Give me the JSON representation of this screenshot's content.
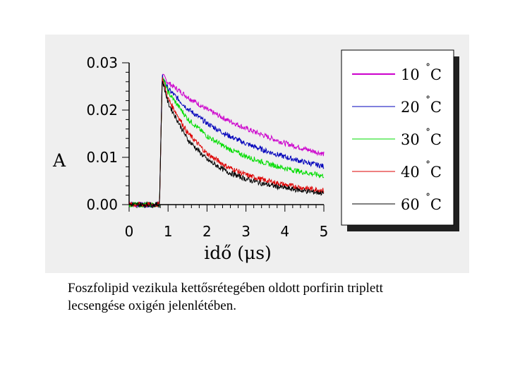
{
  "caption": {
    "line1": "Foszfolipid vezikula kettősrétegében oldott porfirin triplett",
    "line2": "lecsengése oxigén jelenlétében."
  },
  "colors": {
    "panel_background": "#efefef",
    "legend_shadow": "#202020"
  },
  "chart_data": {
    "type": "line",
    "title": "",
    "xlabel": "idő (μs)",
    "ylabel": "A",
    "xlim": [
      0,
      5
    ],
    "ylim": [
      0,
      0.03
    ],
    "xticks": [
      "0",
      "1",
      "2",
      "3",
      "4",
      "5"
    ],
    "yticks": [
      "0.00",
      "0.01",
      "0.02",
      "0.03"
    ],
    "grid": false,
    "legend_position": "right",
    "series": [
      {
        "name": "10",
        "unit": "°C",
        "color": "#cc00cc",
        "x": [
          0,
          0.4,
          0.78,
          0.85,
          1.0,
          1.5,
          2.0,
          2.5,
          3.0,
          3.5,
          4.0,
          4.5,
          5.0
        ],
        "y": [
          0.0,
          0.0,
          0.0,
          0.0275,
          0.0258,
          0.0228,
          0.0201,
          0.018,
          0.0161,
          0.0145,
          0.013,
          0.0118,
          0.0107
        ]
      },
      {
        "name": "20",
        "unit": "°C",
        "color": "#0000bb",
        "x": [
          0,
          0.4,
          0.78,
          0.85,
          1.0,
          1.5,
          2.0,
          2.5,
          3.0,
          3.5,
          4.0,
          4.5,
          5.0
        ],
        "y": [
          0.0,
          0.0,
          0.0,
          0.0272,
          0.0245,
          0.0203,
          0.0172,
          0.0148,
          0.0129,
          0.0114,
          0.0101,
          0.009,
          0.0081
        ]
      },
      {
        "name": "30",
        "unit": "°C",
        "color": "#00dd00",
        "x": [
          0,
          0.4,
          0.78,
          0.85,
          1.0,
          1.5,
          2.0,
          2.5,
          3.0,
          3.5,
          4.0,
          4.5,
          5.0
        ],
        "y": [
          0.0,
          0.0,
          0.0,
          0.027,
          0.0238,
          0.0182,
          0.0145,
          0.012,
          0.0102,
          0.0088,
          0.0077,
          0.0068,
          0.0061
        ]
      },
      {
        "name": "40",
        "unit": "°C",
        "color": "#dd0000",
        "x": [
          0,
          0.4,
          0.78,
          0.85,
          1.0,
          1.5,
          2.0,
          2.5,
          3.0,
          3.5,
          4.0,
          4.5,
          5.0
        ],
        "y": [
          0.0,
          0.0,
          0.0,
          0.0268,
          0.0224,
          0.0152,
          0.0108,
          0.0081,
          0.0063,
          0.0051,
          0.0042,
          0.0035,
          0.003
        ]
      },
      {
        "name": "60",
        "unit": "°C",
        "color": "#000000",
        "x": [
          0,
          0.4,
          0.78,
          0.85,
          1.0,
          1.5,
          2.0,
          2.5,
          3.0,
          3.5,
          4.0,
          4.5,
          5.0
        ],
        "y": [
          0.0,
          0.0,
          0.0,
          0.0265,
          0.0215,
          0.0138,
          0.0095,
          0.007,
          0.0054,
          0.0043,
          0.0035,
          0.0029,
          0.0024
        ]
      }
    ]
  }
}
